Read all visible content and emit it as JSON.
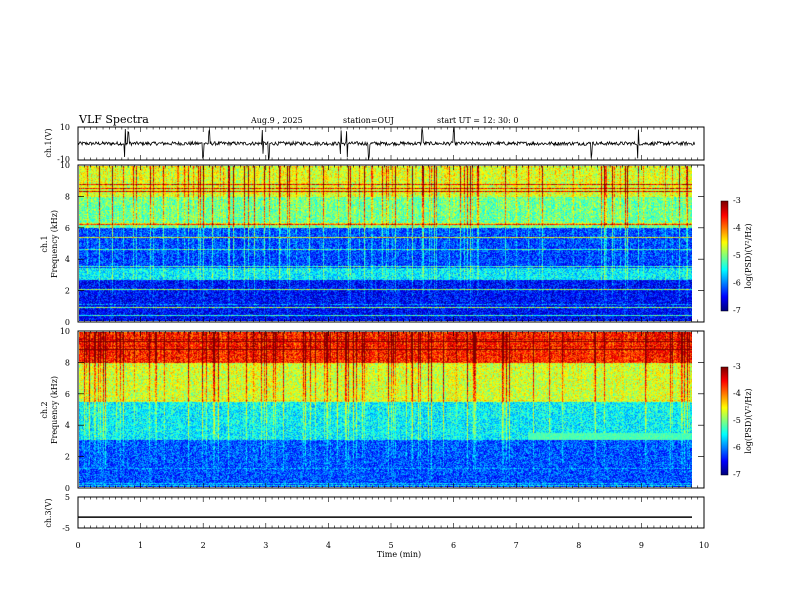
{
  "header": {
    "title": "VLF Spectra",
    "date": "Aug.9 , 2025",
    "station": "station=OUJ",
    "start_ut": "start UT = 12: 30: 0"
  },
  "chart_data": [
    {
      "type": "line",
      "panel": "ch1-waveform",
      "ylabel": "ch.1(V)",
      "ylim": [
        -10,
        10
      ],
      "yticks": [
        "10",
        "-10"
      ],
      "description_values": {
        "baseline": 0,
        "spike_times_min": [
          0.75,
          0.8,
          2.0,
          2.1,
          2.95,
          3.05,
          4.2,
          4.3,
          4.65,
          5.5,
          6.0,
          8.2,
          8.95
        ]
      }
    },
    {
      "type": "heatmap",
      "panel": "ch1-spectrogram",
      "ylabel": "ch.1\nFrequency (kHz)",
      "ylim": [
        0,
        10
      ],
      "yticks": [
        "0",
        "2",
        "4",
        "6",
        "8",
        "10"
      ],
      "xlim": [
        0,
        10
      ],
      "colorbar": {
        "label": "log(PSD)(V²/Hz)",
        "ticks": [
          "-3",
          "-4",
          "-5",
          "-6",
          "-7"
        ],
        "range": [
          -7,
          -3
        ]
      },
      "bands_khz": [
        {
          "from": 0,
          "to": 2.6,
          "level": -6.5
        },
        {
          "from": 2.6,
          "to": 3.4,
          "level": -5.6
        },
        {
          "from": 3.4,
          "to": 6.0,
          "level": -6.3
        },
        {
          "from": 6.0,
          "to": 8.0,
          "level": -5.2
        },
        {
          "from": 8.0,
          "to": 10.0,
          "level": -4.8
        }
      ]
    },
    {
      "type": "heatmap",
      "panel": "ch2-spectrogram",
      "ylabel": "ch.2\nFrequency (kHz)",
      "ylim": [
        0,
        10
      ],
      "yticks": [
        "0",
        "2",
        "4",
        "6",
        "8",
        "10"
      ],
      "xlim": [
        0,
        10
      ],
      "colorbar": {
        "label": "log(PSD)(V²/Hz)",
        "ticks": [
          "-3",
          "-4",
          "-5",
          "-6",
          "-7"
        ],
        "range": [
          -7,
          -3
        ]
      },
      "bands_khz": [
        {
          "from": 0,
          "to": 3.0,
          "level": -6.2
        },
        {
          "from": 3.0,
          "to": 5.5,
          "level": -5.6
        },
        {
          "from": 5.5,
          "to": 8.0,
          "level": -4.8
        },
        {
          "from": 8.0,
          "to": 10.0,
          "level": -3.8
        }
      ],
      "line_feature": {
        "t_start_min": 7.2,
        "t_end_min": 9.85,
        "freq_khz": 3.25,
        "level": -5.2
      }
    },
    {
      "type": "line",
      "panel": "ch3-waveform",
      "ylabel": "ch.3(V)",
      "ylim": [
        -5,
        5
      ],
      "yticks": [
        "5",
        "0",
        "-5"
      ],
      "xlabel": "Time (min)",
      "xlim": [
        0,
        10
      ],
      "xticks": [
        "0",
        "1",
        "2",
        "3",
        "4",
        "5",
        "6",
        "7",
        "8",
        "9",
        "10"
      ],
      "constant_value": -1.5
    }
  ]
}
